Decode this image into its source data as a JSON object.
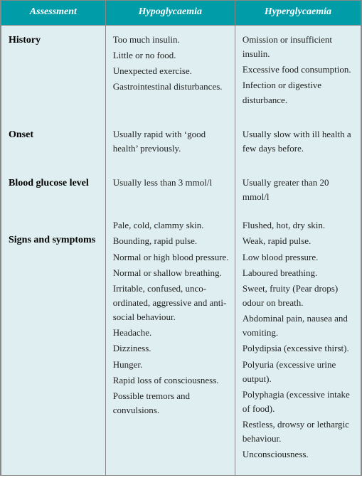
{
  "headers": {
    "assessment": "Assessment",
    "hypo": "Hypoglycaemia",
    "hyper": "Hyperglycaemia"
  },
  "rows": {
    "history": {
      "label": "History",
      "hypo": [
        "Too much insulin.",
        "Little or no food.",
        "Unexpected exercise.",
        "Gastrointestinal disturbances."
      ],
      "hyper": [
        "Omission or insufficient insulin.",
        "Excessive food consumption.",
        "Infection or digestive disturbance."
      ]
    },
    "onset": {
      "label": "Onset",
      "hypo": [
        "Usually rapid with ‘good health’ previously."
      ],
      "hyper": [
        "Usually slow with ill health a few days before."
      ]
    },
    "bgl": {
      "label": "Blood glucose level",
      "hypo": [
        "Usually less than 3 mmol/l"
      ],
      "hyper": [
        "Usually greater than 20 mmol/l"
      ]
    },
    "signs": {
      "label": "Signs and symptoms",
      "hypo": [
        "Pale, cold, clammy skin.",
        "Bounding, rapid pulse.",
        "Normal or high blood pressure.",
        "Normal or shallow breathing.",
        "Irritable, confused, unco-ordinated, aggressive and anti-social behaviour.",
        "Headache.",
        "Dizziness.",
        "Hunger.",
        "Rapid loss of consciousness.",
        "Possible tremors and convulsions."
      ],
      "hyper": [
        "Flushed, hot, dry skin.",
        "Weak, rapid pulse.",
        "Low blood pressure.",
        "Laboured breathing.",
        "Sweet, fruity (Pear drops) odour on breath.",
        "Abdominal pain, nausea and vomiting.",
        "Polydipsia (excessive thirst).",
        "Polyuria (excessive urine output).",
        "Polyphagia (excessive intake of food).",
        "Restless, drowsy or lethargic behaviour.",
        "Unconsciousness."
      ]
    }
  },
  "colors": {
    "header_bg": "#009da8",
    "header_text": "#ffffff",
    "body_bg": "#dfeef0",
    "border": "#888888",
    "text": "#222222"
  }
}
